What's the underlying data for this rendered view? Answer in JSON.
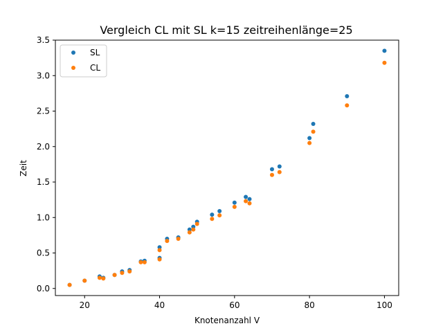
{
  "chart_data": {
    "type": "scatter",
    "title": "Vergleich CL mit SL k=15 zeitreihenlänge=25",
    "xlabel": "Knotenanzahl V",
    "ylabel": "Zeit",
    "xlim": [
      12.2,
      103.8
    ],
    "ylim": [
      -0.1,
      3.5
    ],
    "xticks": [
      20,
      40,
      60,
      80,
      100
    ],
    "yticks": [
      0.0,
      0.5,
      1.0,
      1.5,
      2.0,
      2.5,
      3.0,
      3.5
    ],
    "xtick_labels": [
      "20",
      "40",
      "60",
      "80",
      "100"
    ],
    "ytick_labels": [
      "0.0",
      "0.5",
      "1.0",
      "1.5",
      "2.0",
      "2.5",
      "3.0",
      "3.5"
    ],
    "grid": false,
    "legend_position": "top-left",
    "series": [
      {
        "name": "SL",
        "color": "#1f77b4",
        "points": [
          [
            16,
            0.05
          ],
          [
            20,
            0.11
          ],
          [
            24,
            0.17
          ],
          [
            25,
            0.15
          ],
          [
            28,
            0.19
          ],
          [
            30,
            0.24
          ],
          [
            32,
            0.26
          ],
          [
            35,
            0.38
          ],
          [
            36,
            0.39
          ],
          [
            40,
            0.43
          ],
          [
            40,
            0.58
          ],
          [
            42,
            0.7
          ],
          [
            45,
            0.72
          ],
          [
            48,
            0.83
          ],
          [
            49,
            0.87
          ],
          [
            50,
            0.94
          ],
          [
            54,
            1.04
          ],
          [
            56,
            1.09
          ],
          [
            60,
            1.21
          ],
          [
            63,
            1.29
          ],
          [
            64,
            1.26
          ],
          [
            70,
            1.68
          ],
          [
            72,
            1.72
          ],
          [
            80,
            2.12
          ],
          [
            81,
            2.32
          ],
          [
            90,
            2.71
          ],
          [
            100,
            3.35
          ]
        ]
      },
      {
        "name": "CL",
        "color": "#ff7f0e",
        "points": [
          [
            16,
            0.05
          ],
          [
            20,
            0.11
          ],
          [
            24,
            0.15
          ],
          [
            25,
            0.14
          ],
          [
            28,
            0.19
          ],
          [
            30,
            0.22
          ],
          [
            32,
            0.24
          ],
          [
            35,
            0.37
          ],
          [
            36,
            0.37
          ],
          [
            40,
            0.41
          ],
          [
            40,
            0.54
          ],
          [
            42,
            0.67
          ],
          [
            45,
            0.7
          ],
          [
            48,
            0.79
          ],
          [
            49,
            0.83
          ],
          [
            50,
            0.91
          ],
          [
            54,
            0.98
          ],
          [
            56,
            1.03
          ],
          [
            60,
            1.15
          ],
          [
            63,
            1.23
          ],
          [
            64,
            1.2
          ],
          [
            70,
            1.6
          ],
          [
            72,
            1.64
          ],
          [
            80,
            2.05
          ],
          [
            81,
            2.21
          ],
          [
            90,
            2.58
          ],
          [
            100,
            3.18
          ]
        ]
      }
    ]
  }
}
